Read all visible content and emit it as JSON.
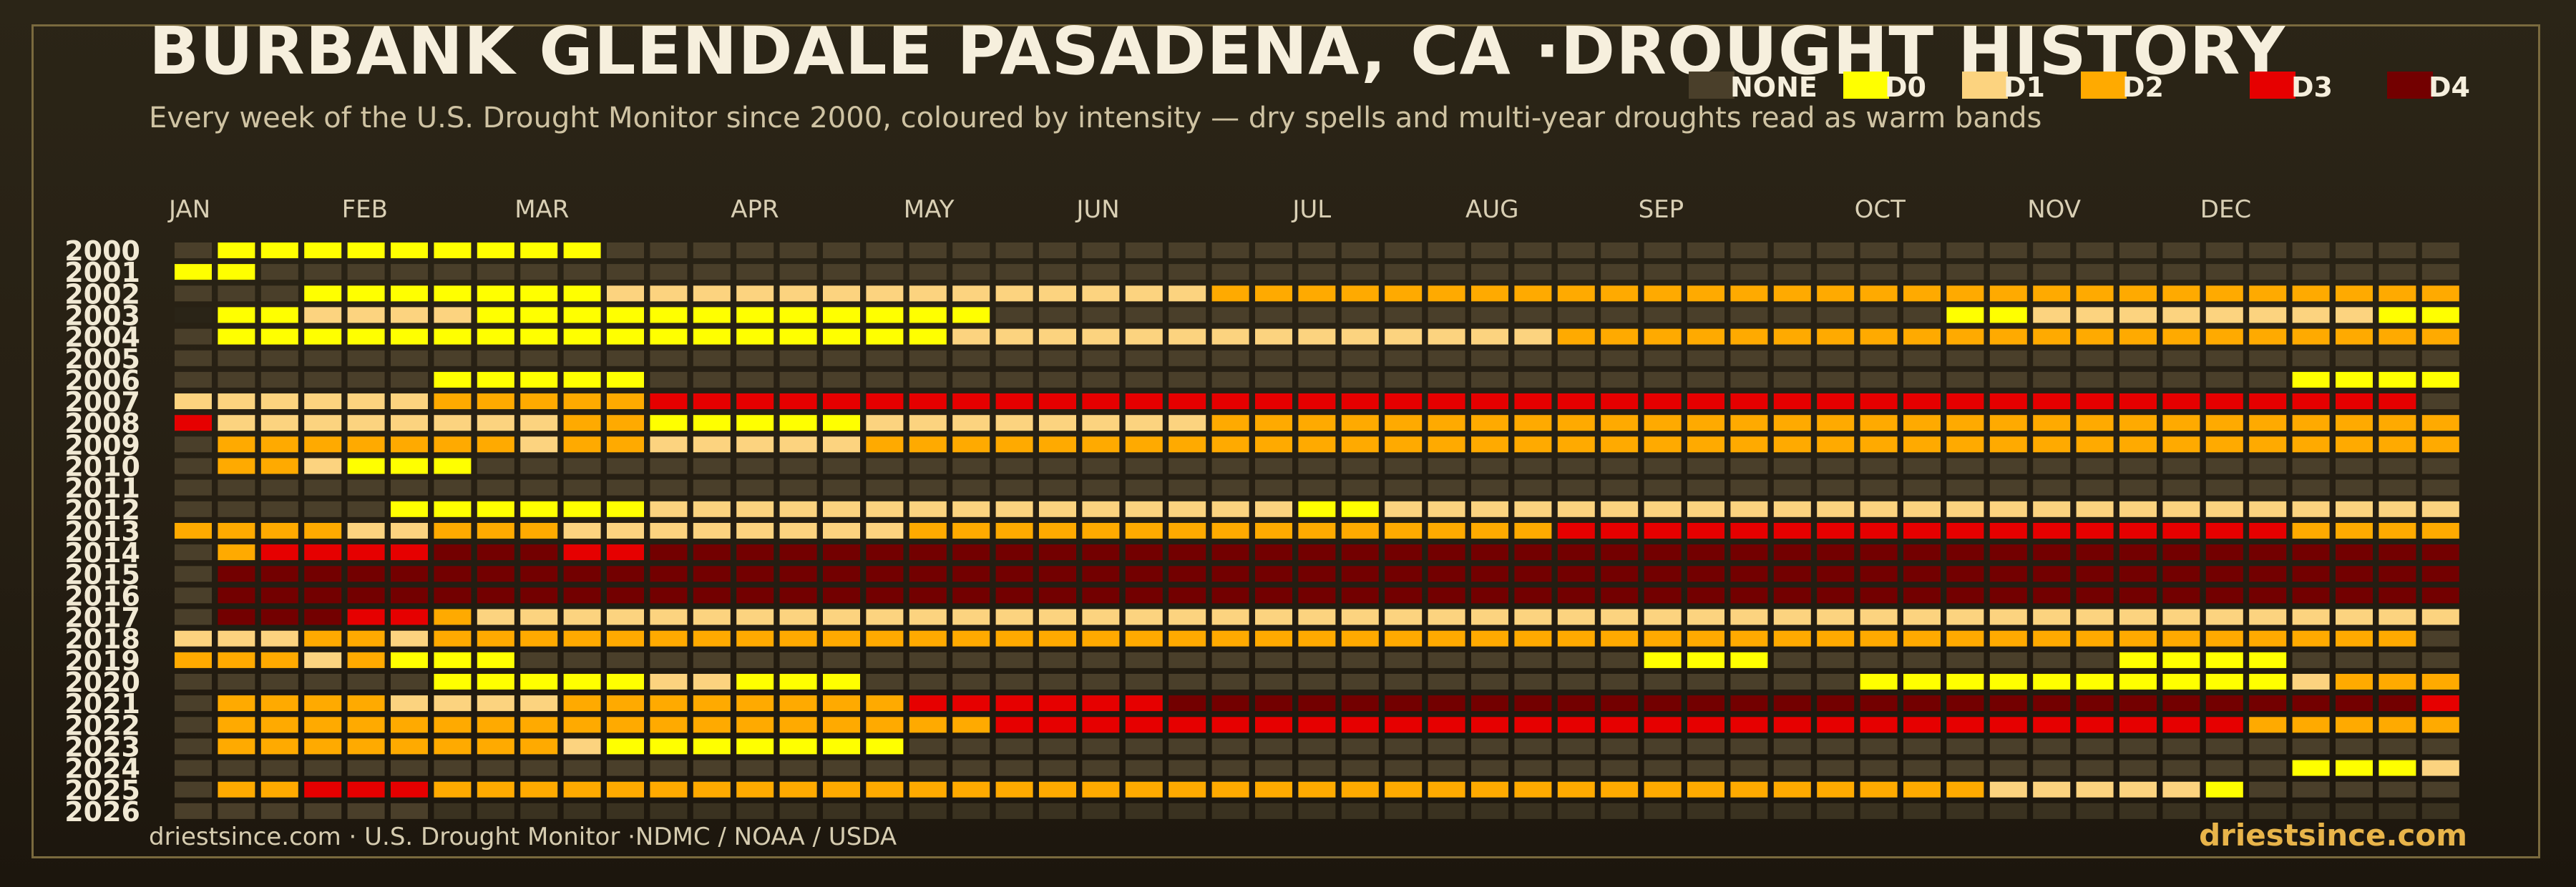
{
  "title": "BURBANK GLENDALE PASADENA, CA ·DROUGHT HISTORY",
  "subtitle": "Every week of the U.S. Drought Monitor since 2000, coloured by intensity — dry spells and multi-year droughts read as warm bands",
  "footer": {
    "source": "driestsince.com  · U.S. Drought Monitor ·NDMC / NOAA / USDA",
    "brand": "driestsince.com"
  },
  "legend": [
    {
      "label": "NONE",
      "color": "#4a3f2a"
    },
    {
      "label": "D0",
      "color": "#ffff00"
    },
    {
      "label": "D1",
      "color": "#fcd37f"
    },
    {
      "label": "D2",
      "color": "#ffaa00"
    },
    {
      "label": "D3",
      "color": "#e60000"
    },
    {
      "label": "D4",
      "color": "#730000"
    }
  ],
  "chart_data": {
    "type": "heatmap",
    "xlabel": "",
    "ylabel": "",
    "x_unit": "week of year",
    "weeks_per_year": 53,
    "months": [
      {
        "label": "JAN",
        "week": 1
      },
      {
        "label": "FEB",
        "week": 5
      },
      {
        "label": "MAR",
        "week": 9
      },
      {
        "label": "APR",
        "week": 14
      },
      {
        "label": "MAY",
        "week": 18
      },
      {
        "label": "JUN",
        "week": 22
      },
      {
        "label": "JUL",
        "week": 27
      },
      {
        "label": "AUG",
        "week": 31
      },
      {
        "label": "SEP",
        "week": 35
      },
      {
        "label": "OCT",
        "week": 40
      },
      {
        "label": "NOV",
        "week": 44
      },
      {
        "label": "DEC",
        "week": 48
      }
    ],
    "categories": [
      "NONE",
      "D0",
      "D1",
      "D2",
      "D3",
      "D4"
    ],
    "years": [
      "2000",
      "2001",
      "2002",
      "2003",
      "2004",
      "2005",
      "2006",
      "2007",
      "2008",
      "2009",
      "2010",
      "2011",
      "2012",
      "2013",
      "2014",
      "2015",
      "2016",
      "2017",
      "2018",
      "2019",
      "2020",
      "2021",
      "2022",
      "2023",
      "2024",
      "2025",
      "2026"
    ],
    "intensity_runs": {
      "2000": [
        [
          2,
          10,
          1
        ]
      ],
      "2001": [
        [
          1,
          2,
          1
        ]
      ],
      "2002": [
        [
          4,
          10,
          1
        ],
        [
          11,
          24,
          2
        ],
        [
          25,
          53,
          3
        ]
      ],
      "2003": [
        [
          1,
          1,
          -1
        ],
        [
          2,
          3,
          1
        ],
        [
          4,
          7,
          2
        ],
        [
          8,
          19,
          1
        ],
        [
          20,
          41,
          0
        ],
        [
          42,
          43,
          1
        ],
        [
          44,
          51,
          2
        ],
        [
          52,
          53,
          1
        ]
      ],
      "2004": [
        [
          2,
          18,
          1
        ],
        [
          19,
          32,
          2
        ],
        [
          33,
          53,
          3
        ]
      ],
      "2006": [
        [
          7,
          11,
          1
        ],
        [
          50,
          53,
          1
        ]
      ],
      "2007": [
        [
          1,
          6,
          2
        ],
        [
          7,
          11,
          3
        ],
        [
          12,
          52,
          4
        ]
      ],
      "2008": [
        [
          1,
          1,
          4
        ],
        [
          2,
          9,
          2
        ],
        [
          10,
          11,
          3
        ],
        [
          12,
          16,
          1
        ],
        [
          17,
          24,
          2
        ],
        [
          25,
          53,
          3
        ]
      ],
      "2009": [
        [
          2,
          8,
          3
        ],
        [
          9,
          9,
          2
        ],
        [
          10,
          11,
          3
        ],
        [
          12,
          16,
          2
        ],
        [
          17,
          53,
          3
        ]
      ],
      "2010": [
        [
          2,
          3,
          3
        ],
        [
          4,
          4,
          2
        ],
        [
          5,
          7,
          1
        ]
      ],
      "2012": [
        [
          6,
          9,
          1
        ],
        [
          10,
          11,
          1
        ],
        [
          12,
          26,
          2
        ],
        [
          27,
          28,
          1
        ],
        [
          29,
          53,
          2
        ]
      ],
      "2013": [
        [
          1,
          4,
          3
        ],
        [
          5,
          6,
          2
        ],
        [
          7,
          9,
          3
        ],
        [
          10,
          17,
          2
        ],
        [
          18,
          32,
          3
        ],
        [
          33,
          47,
          4
        ],
        [
          48,
          49,
          4
        ],
        [
          50,
          53,
          3
        ]
      ],
      "2014": [
        [
          2,
          2,
          3
        ],
        [
          3,
          6,
          4
        ],
        [
          7,
          9,
          5
        ],
        [
          10,
          11,
          4
        ],
        [
          12,
          53,
          5
        ]
      ],
      "2015": [
        [
          2,
          53,
          5
        ]
      ],
      "2016": [
        [
          2,
          53,
          5
        ]
      ],
      "2017": [
        [
          2,
          4,
          5
        ],
        [
          5,
          6,
          4
        ],
        [
          7,
          7,
          3
        ],
        [
          8,
          53,
          2
        ]
      ],
      "2018": [
        [
          1,
          3,
          2
        ],
        [
          4,
          5,
          3
        ],
        [
          6,
          6,
          2
        ],
        [
          7,
          52,
          3
        ]
      ],
      "2019": [
        [
          1,
          3,
          3
        ],
        [
          4,
          4,
          2
        ],
        [
          5,
          5,
          3
        ],
        [
          6,
          8,
          1
        ],
        [
          35,
          37,
          1
        ],
        [
          38,
          39,
          0
        ],
        [
          46,
          49,
          1
        ]
      ],
      "2020": [
        [
          7,
          11,
          1
        ],
        [
          12,
          13,
          2
        ],
        [
          14,
          16,
          1
        ],
        [
          40,
          41,
          1
        ],
        [
          42,
          49,
          1
        ],
        [
          50,
          50,
          2
        ],
        [
          51,
          53,
          3
        ]
      ],
      "2021": [
        [
          2,
          5,
          3
        ],
        [
          6,
          9,
          2
        ],
        [
          10,
          17,
          3
        ],
        [
          18,
          23,
          4
        ],
        [
          24,
          52,
          5
        ],
        [
          53,
          53,
          4
        ]
      ],
      "2022": [
        [
          2,
          19,
          3
        ],
        [
          20,
          48,
          4
        ],
        [
          49,
          53,
          3
        ]
      ],
      "2023": [
        [
          2,
          9,
          3
        ],
        [
          10,
          10,
          2
        ],
        [
          11,
          17,
          1
        ]
      ],
      "2024": [
        [
          50,
          52,
          1
        ],
        [
          53,
          53,
          2
        ]
      ],
      "2025": [
        [
          2,
          3,
          3
        ],
        [
          4,
          6,
          4
        ],
        [
          7,
          42,
          3
        ],
        [
          43,
          47,
          2
        ],
        [
          48,
          48,
          1
        ]
      ]
    }
  }
}
